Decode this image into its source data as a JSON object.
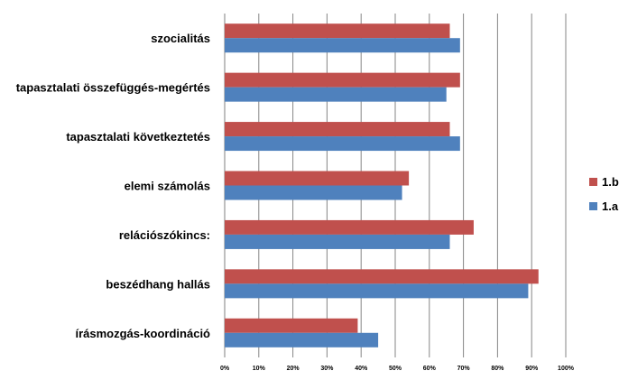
{
  "chart_data": {
    "type": "bar",
    "orientation": "horizontal",
    "categories": [
      "szocialitás",
      "tapasztalati összefüggés-megértés",
      "tapasztalati következtetés",
      "elemi számolás",
      "relációszókincs:",
      "beszédhang hallás",
      "írásmozgás-koordináció"
    ],
    "series": [
      {
        "name": "1.b",
        "color": "#c0504d",
        "values": [
          66,
          69,
          66,
          54,
          73,
          92,
          39
        ]
      },
      {
        "name": "1.a",
        "color": "#4f81bd",
        "values": [
          69,
          65,
          69,
          52,
          66,
          89,
          45
        ]
      }
    ],
    "xlim": [
      0,
      100
    ],
    "x_ticks": [
      "0%",
      "10%",
      "20%",
      "30%",
      "40%",
      "50%",
      "60%",
      "70%",
      "80%",
      "90%",
      "100%"
    ],
    "grid": "vertical",
    "legend_position": "right",
    "title": "",
    "xlabel": "",
    "ylabel": ""
  }
}
